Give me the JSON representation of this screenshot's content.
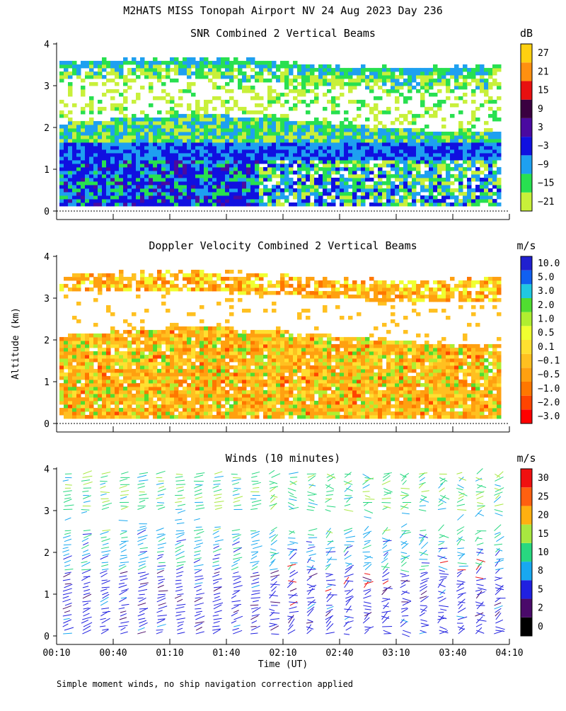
{
  "title": "M2HATS MISS Tonopah Airport NV  24 Aug 2023 Day 236",
  "ylabel": "Altitude (km)",
  "xlabel": "Time (UT)",
  "footnote": "Simple moment winds, no ship navigation correction applied",
  "x_ticks": [
    "00:10",
    "00:40",
    "01:10",
    "01:40",
    "02:10",
    "02:40",
    "03:10",
    "03:40",
    "04:10"
  ],
  "y_ticks": [
    "0",
    "1",
    "2",
    "3",
    "4"
  ],
  "colors": {
    "snr": [
      "#c8f03a",
      "#28e050",
      "#1ea0f0",
      "#1010e0",
      "#4a0aa0",
      "#3a0040",
      "#e81010",
      "#ff9010",
      "#ffd010"
    ],
    "vel": [
      "#ff0000",
      "#ff4400",
      "#ff7700",
      "#ffa010",
      "#ffc020",
      "#ffe030",
      "#f0ff30",
      "#b0ee30",
      "#50dd30",
      "#20c8e0",
      "#1060f0",
      "#2020d0",
      "#4010b0",
      "#300040"
    ],
    "wind": [
      "#000000",
      "#4a0a6a",
      "#2020e0",
      "#18a8f0",
      "#28d880",
      "#a8e840",
      "#ffb010",
      "#ff6010",
      "#f01010"
    ]
  },
  "chart_data": [
    {
      "type": "heatmap",
      "title": "SNR Combined 2 Vertical Beams",
      "xlabel": "",
      "ylabel": "Altitude (km)",
      "xlim": [
        "00:10",
        "04:10"
      ],
      "ylim": [
        0,
        4
      ],
      "colorbar_label": "dB",
      "colorbar_ticks": [
        "27",
        "21",
        "15",
        "9",
        "3",
        "−3",
        "−9",
        "−15",
        "−21"
      ],
      "colorbar_range": [
        -24,
        33
      ],
      "description_layers": [
        {
          "altitude_km": [
            0.1,
            1.3
          ],
          "dominant_dB": -3
        },
        {
          "altitude_km": [
            1.3,
            2.1
          ],
          "dominant_dB": -9
        },
        {
          "altitude_km": [
            2.1,
            3.1
          ],
          "dominant_dB": "no data (gaps)"
        },
        {
          "altitude_km": [
            3.1,
            3.6
          ],
          "dominant_dB": -15
        }
      ]
    },
    {
      "type": "heatmap",
      "title": "Doppler Velocity Combined 2 Vertical Beams",
      "xlabel": "",
      "ylabel": "Altitude (km)",
      "xlim": [
        "00:10",
        "04:10"
      ],
      "ylim": [
        0,
        4
      ],
      "colorbar_label": "m/s",
      "colorbar_ticks": [
        "10.0",
        "5.0",
        "3.0",
        "2.0",
        "1.0",
        "0.5",
        "0.1",
        "−0.1",
        "−0.5",
        "−1.0",
        "−2.0",
        "−3.0"
      ],
      "colorbar_range": [
        -3.0,
        10.0
      ],
      "description_layers": [
        {
          "altitude_km": [
            0.1,
            2.1
          ],
          "dominant_m_s": -0.5
        },
        {
          "altitude_km": [
            2.1,
            3.0
          ],
          "dominant_m_s": "no data (gaps)"
        },
        {
          "altitude_km": [
            3.0,
            3.7
          ],
          "dominant_m_s": -0.5
        }
      ]
    },
    {
      "type": "scatter",
      "title": "Winds (10 minutes)",
      "xlabel": "Time (UT)",
      "ylabel": "Altitude (km)",
      "xlim": [
        "00:10",
        "04:10"
      ],
      "ylim": [
        0,
        4
      ],
      "colorbar_label": "m/s",
      "colorbar_ticks": [
        "30",
        "25",
        "20",
        "15",
        "10",
        "8",
        "5",
        "2",
        "0"
      ],
      "profile_times": [
        "00:20",
        "00:30",
        "00:40",
        "00:50",
        "01:00",
        "01:10",
        "01:20",
        "01:30",
        "01:40",
        "01:50",
        "02:00",
        "02:10",
        "02:20",
        "02:30",
        "02:40",
        "02:50",
        "03:00",
        "03:10",
        "03:20",
        "03:30",
        "03:40",
        "03:50",
        "04:00",
        "04:10"
      ],
      "description_layers": [
        {
          "altitude_km": [
            0.0,
            1.5
          ],
          "speed_m_s": 6
        },
        {
          "altitude_km": [
            1.5,
            2.5
          ],
          "speed_m_s": 12
        },
        {
          "altitude_km": [
            3.0,
            4.0
          ],
          "speed_m_s": 17
        }
      ]
    }
  ]
}
